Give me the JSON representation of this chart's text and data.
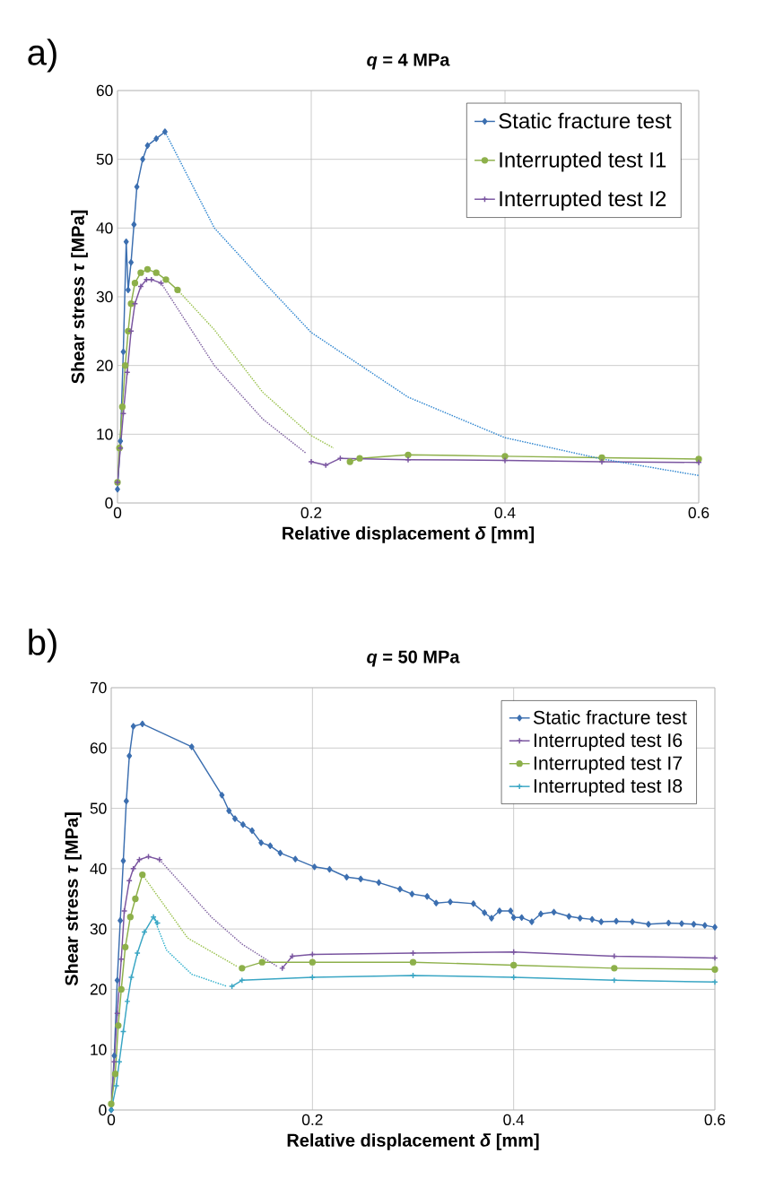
{
  "chart_data": [
    {
      "type": "line",
      "title": "*q* = 4 MPa",
      "xlabel": "Relative displacement *δ* [mm]",
      "ylabel": "Shear stress *τ* [MPa]",
      "annotations": [
        "a)"
      ],
      "xlim": [
        0,
        0.6
      ],
      "ylim": [
        0,
        60
      ],
      "xticks": [
        0,
        0.2,
        0.4,
        0.6
      ],
      "yticks": [
        0,
        10,
        20,
        30,
        40,
        50,
        60
      ],
      "grid": true,
      "legend": "top right",
      "series": [
        {
          "name": "Static fracture test",
          "color": "#3c6fb0",
          "marker": "diamond",
          "line_style": "solid",
          "x": [
            0,
            0.003,
            0.006,
            0.009,
            0.011,
            0.014,
            0.017,
            0.02,
            0.026,
            0.031,
            0.04,
            0.049
          ],
          "values": [
            2,
            9,
            22,
            38,
            31,
            35,
            40.5,
            46,
            50,
            52,
            53,
            54
          ]
        },
        {
          "name": "Interrupted test I1",
          "color": "#8db04a",
          "marker": "circle",
          "line_style": "solid",
          "x": [
            0,
            0.002,
            0.005,
            0.008,
            0.011,
            0.014,
            0.018,
            0.024,
            0.031,
            0.04,
            0.05,
            0.062,
            0.223,
            0.24,
            0.25,
            0.3,
            0.4,
            0.5,
            0.6
          ],
          "values": [
            3,
            8,
            14,
            20,
            25,
            29,
            32,
            33.5,
            34,
            33.5,
            32.5,
            31,
            null,
            6,
            6.5,
            7,
            6.8,
            6.6,
            6.4
          ]
        },
        {
          "name": "Interrupted test I2",
          "color": "#7a55a0",
          "marker": "cross",
          "line_style": "solid",
          "x": [
            0,
            0.003,
            0.006,
            0.01,
            0.014,
            0.018,
            0.024,
            0.03,
            0.035,
            0.045,
            0.195,
            0.2,
            0.215,
            0.23,
            0.3,
            0.4,
            0.5,
            0.6
          ],
          "values": [
            3,
            8,
            13,
            19,
            25,
            29,
            31.5,
            32.5,
            32.5,
            32,
            null,
            6,
            5.5,
            6.5,
            6.3,
            6.2,
            6,
            5.9
          ]
        },
        {
          "color": "#2f86d0",
          "marker": "none",
          "line_style": "dotted",
          "x": [
            0.049,
            0.1,
            0.15,
            0.2,
            0.3,
            0.4,
            0.5,
            0.6
          ],
          "values": [
            54,
            40,
            32.3,
            24.8,
            15.4,
            9.5,
            6.4,
            4
          ]
        },
        {
          "color": "#9bc24f",
          "marker": "none",
          "line_style": "dotted",
          "x": [
            0.062,
            0.1,
            0.15,
            0.2,
            0.223
          ],
          "values": [
            31,
            25.2,
            16.1,
            9.8,
            8
          ]
        },
        {
          "color": "#8064a2",
          "marker": "none",
          "line_style": "dotted",
          "x": [
            0.045,
            0.1,
            0.15,
            0.195
          ],
          "values": [
            32,
            20,
            12.2,
            7.2
          ]
        }
      ]
    },
    {
      "type": "line",
      "title": "*q* = 50 MPa",
      "xlabel": "Relative displacement *δ* [mm]",
      "ylabel": "Shear stress *τ* [MPa]",
      "annotations": [
        "b)"
      ],
      "xlim": [
        0,
        0.6
      ],
      "ylim": [
        0,
        70
      ],
      "xticks": [
        0,
        0.2,
        0.4,
        0.6
      ],
      "yticks": [
        0,
        10,
        20,
        30,
        40,
        50,
        60,
        70
      ],
      "grid": true,
      "legend": "top right",
      "series": [
        {
          "name": "Static fracture test",
          "color": "#3c6fb0",
          "marker": "diamond",
          "line_style": "solid",
          "x": [
            0,
            0.003,
            0.006,
            0.009,
            0.012,
            0.015,
            0.018,
            0.022,
            0.031,
            0.08,
            0.11,
            0.117,
            0.123,
            0.131,
            0.14,
            0.149,
            0.158,
            0.168,
            0.183,
            0.202,
            0.217,
            0.234,
            0.248,
            0.266,
            0.287,
            0.299,
            0.314,
            0.323,
            0.337,
            0.36,
            0.371,
            0.378,
            0.386,
            0.397,
            0.4,
            0.408,
            0.418,
            0.427,
            0.44,
            0.455,
            0.466,
            0.478,
            0.487,
            0.502,
            0.518,
            0.534,
            0.554,
            0.567,
            0.579,
            0.59,
            0.6
          ],
          "values": [
            0,
            9,
            21.5,
            31.4,
            41.3,
            51.2,
            58.7,
            63.6,
            64,
            60.2,
            52.2,
            49.6,
            48.3,
            47.3,
            46.3,
            44.3,
            43.8,
            42.6,
            41.6,
            40.3,
            39.9,
            38.6,
            38.3,
            37.7,
            36.6,
            35.8,
            35.4,
            34.3,
            34.5,
            34.2,
            32.7,
            31.8,
            33,
            33,
            31.9,
            31.9,
            31.2,
            32.5,
            32.8,
            32.1,
            31.8,
            31.6,
            31.2,
            31.3,
            31.2,
            30.8,
            31,
            30.9,
            30.8,
            30.6,
            30.3
          ]
        },
        {
          "name": "Interrupted test I6",
          "color": "#7a55a0",
          "marker": "cross",
          "line_style": "solid",
          "x": [
            0,
            0.003,
            0.006,
            0.01,
            0.013,
            0.018,
            0.022,
            0.028,
            0.037,
            0.048,
            0.165,
            0.17,
            0.18,
            0.2,
            0.3,
            0.4,
            0.5,
            0.6
          ],
          "values": [
            1,
            8,
            16,
            25,
            33,
            38,
            40,
            41.5,
            42,
            41.5,
            null,
            23.5,
            25.5,
            25.8,
            26,
            26.2,
            25.5,
            25.2
          ]
        },
        {
          "name": "Interrupted test I7",
          "color": "#8db04a",
          "marker": "circle",
          "line_style": "solid",
          "x": [
            0,
            0.004,
            0.007,
            0.01,
            0.014,
            0.019,
            0.024,
            0.031,
            0.125,
            0.13,
            0.15,
            0.2,
            0.3,
            0.4,
            0.5,
            0.6
          ],
          "values": [
            1,
            6,
            14,
            20,
            27,
            32,
            35,
            39,
            null,
            23.5,
            24.5,
            24.5,
            24.5,
            24,
            23.5,
            23.3
          ]
        },
        {
          "name": "Interrupted test I8",
          "color": "#3aa6c4",
          "marker": "cross",
          "line_style": "solid",
          "x": [
            0,
            0.005,
            0.008,
            0.012,
            0.016,
            0.02,
            0.026,
            0.033,
            0.042,
            0.046,
            0.115,
            0.12,
            0.13,
            0.2,
            0.3,
            0.4,
            0.5,
            0.6
          ],
          "values": [
            0,
            4,
            8,
            13,
            18,
            22,
            26,
            29.5,
            32,
            31,
            null,
            20.5,
            21.5,
            22,
            22.3,
            22,
            21.5,
            21.2
          ]
        },
        {
          "color": "#8064a2",
          "marker": "none",
          "line_style": "dotted",
          "x": [
            0.048,
            0.1,
            0.13,
            0.165
          ],
          "values": [
            41.5,
            31.9,
            27.5,
            23.8
          ]
        },
        {
          "color": "#9bc24f",
          "marker": "none",
          "line_style": "dotted",
          "x": [
            0.031,
            0.076,
            0.125
          ],
          "values": [
            39,
            28.5,
            23.8
          ]
        },
        {
          "color": "#31b0cc",
          "marker": "none",
          "line_style": "dotted",
          "x": [
            0.042,
            0.055,
            0.08,
            0.115
          ],
          "values": [
            32,
            26.5,
            22.5,
            20.5
          ]
        }
      ]
    }
  ]
}
